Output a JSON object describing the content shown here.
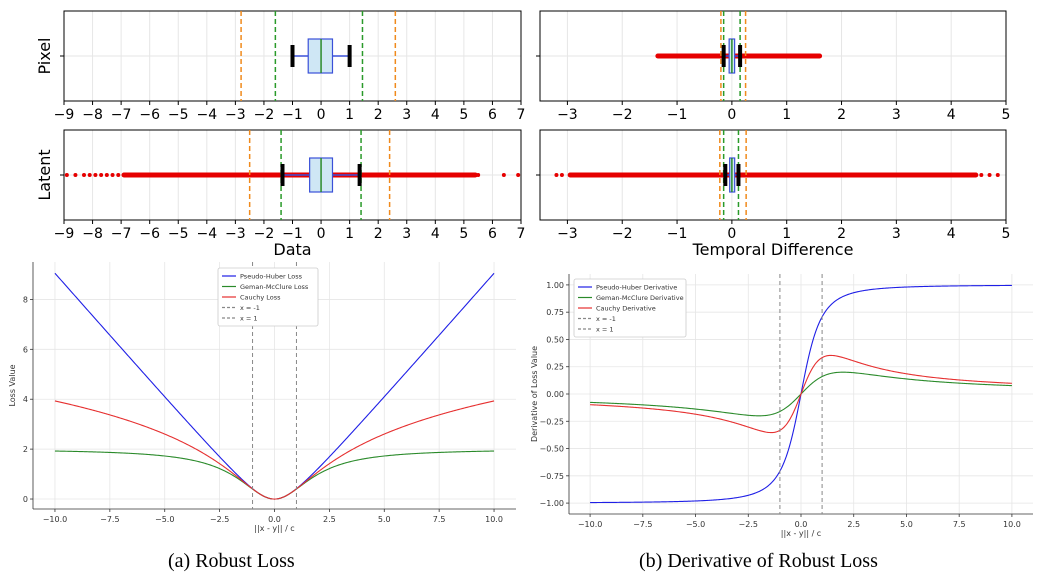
{
  "chart_data": [
    {
      "id": "pixel-data",
      "type": "boxplot",
      "row_label": "Pixel",
      "xlabel": "",
      "xlim": [
        -9,
        7
      ],
      "xticks": [
        -9,
        -8,
        -7,
        -6,
        -5,
        -4,
        -3,
        -2,
        -1,
        0,
        1,
        2,
        3,
        4,
        5,
        6,
        7
      ],
      "box": {
        "whisker_low": -1.0,
        "q1": -0.45,
        "median": 0.0,
        "q3": 0.4,
        "whisker_high": 1.0
      },
      "outliers": [],
      "green_lines": [
        -1.6,
        1.45
      ],
      "orange_lines": [
        -2.8,
        2.6
      ],
      "grid": true
    },
    {
      "id": "pixel-temporal",
      "type": "boxplot",
      "row_label": "",
      "xlabel": "",
      "xlim": [
        -3.5,
        5
      ],
      "xticks": [
        -3,
        -2,
        -1,
        0,
        1,
        2,
        3,
        4,
        5
      ],
      "box": {
        "whisker_low": -0.15,
        "q1": -0.05,
        "median": 0.0,
        "q3": 0.05,
        "whisker_high": 0.15
      },
      "outliers_range": [
        -1.35,
        1.6
      ],
      "green_lines": [
        -0.15,
        0.15
      ],
      "orange_lines": [
        -0.2,
        0.25
      ],
      "grid": true
    },
    {
      "id": "latent-data",
      "type": "boxplot",
      "row_label": "Latent",
      "xlabel": "Data",
      "xlim": [
        -9,
        7
      ],
      "xticks": [
        -9,
        -8,
        -7,
        -6,
        -5,
        -4,
        -3,
        -2,
        -1,
        0,
        1,
        2,
        3,
        4,
        5,
        6,
        7
      ],
      "box": {
        "whisker_low": -1.35,
        "q1": -0.4,
        "median": 0.0,
        "q3": 0.4,
        "whisker_high": 1.35
      },
      "outliers_range": [
        -6.9,
        5.4
      ],
      "outliers_sparse": [
        -8.9,
        -8.6,
        -8.3,
        -8.1,
        -7.9,
        -7.7,
        -7.5,
        -7.3,
        -7.1,
        5.5,
        6.4,
        6.9
      ],
      "green_lines": [
        -1.4,
        1.4
      ],
      "orange_lines": [
        -2.5,
        2.4
      ],
      "grid": true
    },
    {
      "id": "latent-temporal",
      "type": "boxplot",
      "row_label": "",
      "xlabel": "Temporal Difference",
      "xlim": [
        -3.5,
        5
      ],
      "xticks": [
        -3,
        -2,
        -1,
        0,
        1,
        2,
        3,
        4,
        5
      ],
      "box": {
        "whisker_low": -0.12,
        "q1": -0.04,
        "median": 0.0,
        "q3": 0.04,
        "whisker_high": 0.12
      },
      "outliers_range": [
        -2.95,
        4.45
      ],
      "outliers_sparse": [
        -3.2,
        -3.1,
        4.55,
        4.7,
        4.85
      ],
      "green_lines": [
        -0.15,
        0.12
      ],
      "orange_lines": [
        -0.22,
        0.26
      ],
      "grid": true
    },
    {
      "id": "robust-loss",
      "type": "line",
      "title": "",
      "xlabel": "||x - y|| / c",
      "ylabel": "Loss Value",
      "xlim": [
        -11,
        11
      ],
      "ylim": [
        -0.4,
        9.5
      ],
      "xticks": [
        -10.0,
        -7.5,
        -5.0,
        -2.5,
        0.0,
        2.5,
        5.0,
        7.5,
        10.0
      ],
      "yticks": [
        0,
        2,
        4,
        6,
        8
      ],
      "series": [
        {
          "name": "Pseudo-Huber Loss",
          "color": "#1f1fe6",
          "formula": "pseudo-huber"
        },
        {
          "name": "Geman-McClure Loss",
          "color": "#2a8a2a",
          "formula": "geman-mcclure"
        },
        {
          "name": "Cauchy Loss",
          "color": "#e63030",
          "formula": "cauchy"
        },
        {
          "name": "x = -1",
          "color": "#888888",
          "vline": -1
        },
        {
          "name": "x = 1",
          "color": "#888888",
          "vline": 1
        }
      ],
      "legend": "top-center",
      "grid": true
    },
    {
      "id": "robust-loss-derivative",
      "type": "line",
      "title": "",
      "xlabel": "||x - y|| / c",
      "ylabel": "Derivative of Loss Value",
      "xlim": [
        -11,
        11
      ],
      "ylim": [
        -1.1,
        1.1
      ],
      "xticks": [
        -10.0,
        -7.5,
        -5.0,
        -2.5,
        0.0,
        2.5,
        5.0,
        7.5,
        10.0
      ],
      "yticks": [
        -1.0,
        -0.75,
        -0.5,
        -0.25,
        0.0,
        0.25,
        0.5,
        0.75,
        1.0
      ],
      "series": [
        {
          "name": "Pseudo-Huber Derivative",
          "color": "#1f1fe6",
          "formula": "pseudo-huber-d"
        },
        {
          "name": "Geman-McClure Derivative",
          "color": "#2a8a2a",
          "formula": "geman-mcclure-d"
        },
        {
          "name": "Cauchy Derivative",
          "color": "#e63030",
          "formula": "cauchy-d"
        },
        {
          "name": "x = -1",
          "color": "#888888",
          "vline": -1
        },
        {
          "name": "x = 1",
          "color": "#888888",
          "vline": 1
        }
      ],
      "legend": "top-left",
      "grid": true
    }
  ],
  "captions": {
    "left": "(a) Robust Loss",
    "right": "(b) Derivative of Robust Loss"
  },
  "colors": {
    "box_face": "#cfe7f5",
    "box_edge": "#3a50d8",
    "median": "#2a8a2a",
    "whisker_cap": "#000000",
    "outlier": "#e60000",
    "green_line": "#2a9a2a",
    "orange_line": "#f08a1c",
    "grid": "#e6e6e6"
  }
}
